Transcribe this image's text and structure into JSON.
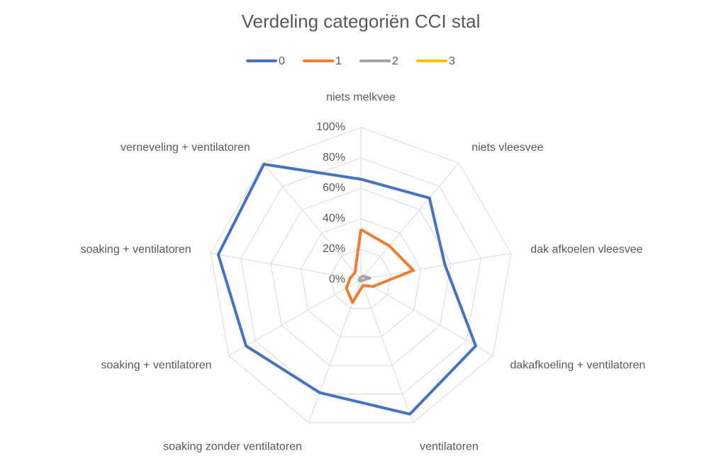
{
  "chart_data": {
    "type": "radar",
    "title": "Verdeling categoriën CCI stal",
    "categories": [
      "niets melkvee",
      "niets vleesvee",
      "dak afkoelen vleesvee",
      "dakafkoeling + ventilatoren",
      "ventilatoren",
      "soaking zonder ventilatoren",
      "soaking + ventilatoren",
      "soaking + ventilatoren",
      "verneveling + ventilatoren"
    ],
    "series": [
      {
        "name": "0",
        "color": "#4472c4",
        "values": [
          66,
          70,
          56,
          87,
          94,
          79,
          87,
          95,
          99
        ]
      },
      {
        "name": "1",
        "color": "#ed7d31",
        "values": [
          33,
          29,
          35,
          9,
          4,
          16,
          11,
          7,
          6
        ]
      },
      {
        "name": "2",
        "color": "#a5a5a5",
        "values": [
          2,
          3,
          6,
          1,
          1,
          1,
          1,
          1,
          1
        ]
      },
      {
        "name": "3",
        "color": "#ffc000",
        "values": [
          0,
          0,
          0,
          0,
          0,
          0,
          0,
          0,
          0
        ]
      }
    ],
    "ylim": [
      0,
      100
    ],
    "yticks": [
      {
        "value": 0,
        "label": "0%"
      },
      {
        "value": 20,
        "label": "20%"
      },
      {
        "value": 40,
        "label": "40%"
      },
      {
        "value": 60,
        "label": "60%"
      },
      {
        "value": 80,
        "label": "80%"
      },
      {
        "value": 100,
        "label": "100%"
      }
    ],
    "grid": true,
    "legend": "top"
  }
}
